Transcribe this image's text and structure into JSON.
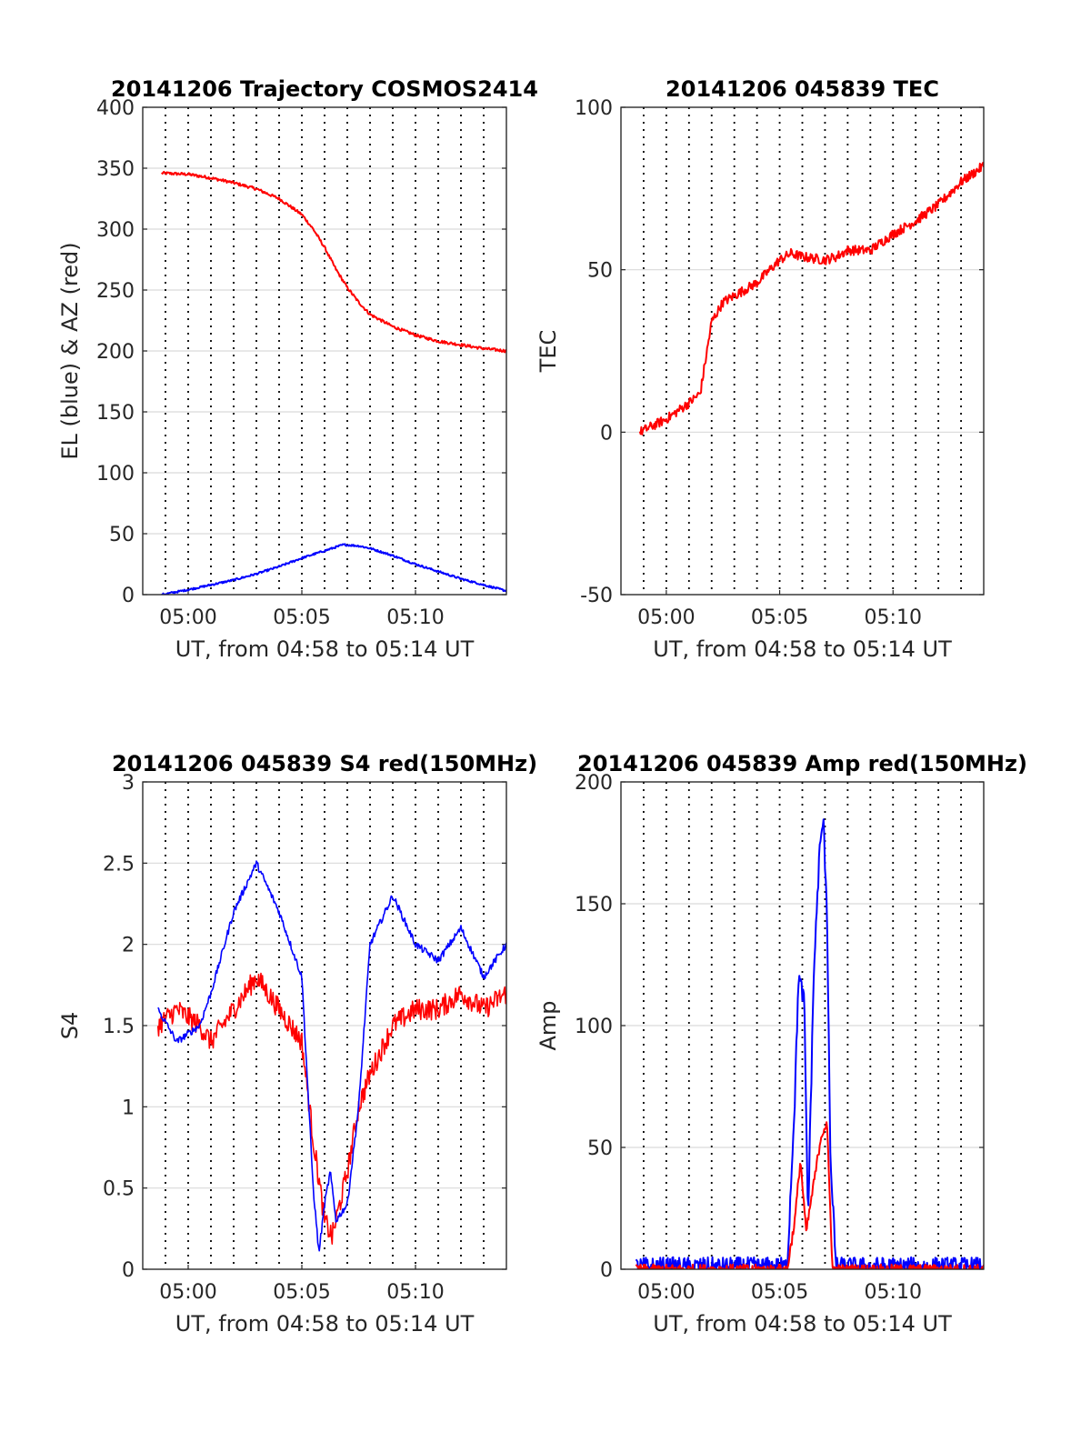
{
  "colors": {
    "el": "#0000ff",
    "az": "#ff0000",
    "tec": "#ff0000",
    "s4_red": "#ff0000",
    "s4_blue": "#0000ff",
    "amp_red": "#ff0000",
    "amp_blue": "#0000ff"
  },
  "chart_data": [
    {
      "id": "trajectory",
      "type": "line",
      "title": "20141206 Trajectory COSMOS2414",
      "xlabel": "UT, from 04:58 to 05:14 UT",
      "ylabel": "EL (blue) & AZ (red)",
      "xlim": [
        "04:58",
        "05:14"
      ],
      "ylim": [
        0,
        400
      ],
      "xticks": [
        "05:00",
        "05:05",
        "05:10"
      ],
      "yticks": [
        0,
        50,
        100,
        150,
        200,
        250,
        300,
        350,
        400
      ],
      "grid_x_minutes": [
        "04:59",
        "05:00",
        "05:01",
        "05:02",
        "05:03",
        "05:04",
        "05:05",
        "05:06",
        "05:07",
        "05:08",
        "05:09",
        "05:10",
        "05:11",
        "05:12",
        "05:13"
      ],
      "series": [
        {
          "color_key": "az",
          "noise": 0.3,
          "x": [
            "04:58:50",
            "05:00:00",
            "05:01:00",
            "05:02:00",
            "05:03:00",
            "05:04:00",
            "05:05:00",
            "05:05:30",
            "05:06:00",
            "05:06:30",
            "05:07:00",
            "05:07:30",
            "05:08:00",
            "05:09:00",
            "05:10:00",
            "05:11:00",
            "05:12:00",
            "05:13:00",
            "05:14:00"
          ],
          "y": [
            346,
            345,
            342,
            338,
            333,
            325,
            312,
            300,
            285,
            267,
            252,
            240,
            230,
            220,
            213,
            208,
            205,
            202,
            200
          ]
        },
        {
          "color_key": "el",
          "noise": 0.2,
          "x": [
            "04:58:50",
            "05:00:00",
            "05:01:00",
            "05:02:00",
            "05:03:00",
            "05:04:00",
            "05:05:00",
            "05:06:00",
            "05:06:50",
            "05:07:30",
            "05:08:00",
            "05:09:00",
            "05:10:00",
            "05:11:00",
            "05:12:00",
            "05:13:00",
            "05:14:00"
          ],
          "y": [
            0,
            4,
            8,
            12,
            17,
            23,
            30,
            36,
            41,
            40,
            38,
            32,
            25,
            19,
            13,
            8,
            3
          ]
        }
      ]
    },
    {
      "id": "tec",
      "type": "line",
      "title": "20141206 045839 TEC",
      "xlabel": "UT, from 04:58 to 05:14 UT",
      "ylabel": "TEC",
      "xlim": [
        "04:58",
        "05:14"
      ],
      "ylim": [
        -50,
        100
      ],
      "xticks": [
        "05:00",
        "05:05",
        "05:10"
      ],
      "yticks": [
        -50,
        0,
        50,
        100
      ],
      "grid_x_minutes": [
        "04:59",
        "05:00",
        "05:01",
        "05:02",
        "05:03",
        "05:04",
        "05:05",
        "05:06",
        "05:07",
        "05:08",
        "05:09",
        "05:10",
        "05:11",
        "05:12",
        "05:13"
      ],
      "series": [
        {
          "color_key": "tec",
          "noise": 1.0,
          "x": [
            "04:58:50",
            "05:00:00",
            "05:01:00",
            "05:01:30",
            "05:02:00",
            "05:02:30",
            "05:03:00",
            "05:04:00",
            "05:05:00",
            "05:05:30",
            "05:06:00",
            "05:07:00",
            "05:07:30",
            "05:08:00",
            "05:09:00",
            "05:10:00",
            "05:11:00",
            "05:12:00",
            "05:13:00",
            "05:14:00"
          ],
          "y": [
            0,
            4,
            9,
            12,
            34,
            40,
            42,
            46,
            53,
            55,
            54,
            53,
            54,
            56,
            56,
            61,
            65,
            70,
            77,
            82
          ]
        }
      ]
    },
    {
      "id": "s4",
      "type": "line",
      "title": "20141206 045839 S4 red(150MHz)",
      "xlabel": "UT, from 04:58 to 05:14 UT",
      "ylabel": "S4",
      "xlim": [
        "04:58",
        "05:14"
      ],
      "ylim": [
        0,
        3
      ],
      "xticks": [
        "05:00",
        "05:05",
        "05:10"
      ],
      "yticks": [
        0,
        0.5,
        1,
        1.5,
        2,
        2.5,
        3
      ],
      "grid_x_minutes": [
        "04:59",
        "05:00",
        "05:01",
        "05:02",
        "05:03",
        "05:04",
        "05:05",
        "05:06",
        "05:07",
        "05:08",
        "05:09",
        "05:10",
        "05:11",
        "05:12",
        "05:13"
      ],
      "series": [
        {
          "color_key": "s4_red",
          "noise": 1.4,
          "x": [
            "04:58:40",
            "04:59:30",
            "05:00:30",
            "05:01:00",
            "05:02:00",
            "05:03:00",
            "05:04:00",
            "05:05:00",
            "05:05:30",
            "05:06:00",
            "05:06:20",
            "05:06:40",
            "05:07:00",
            "05:07:30",
            "05:08:00",
            "05:09:00",
            "05:10:00",
            "05:11:00",
            "05:12:00",
            "05:13:00",
            "05:14:00"
          ],
          "y": [
            1.5,
            1.6,
            1.5,
            1.4,
            1.6,
            1.8,
            1.6,
            1.4,
            0.8,
            0.3,
            0.2,
            0.4,
            0.6,
            1.0,
            1.2,
            1.5,
            1.6,
            1.6,
            1.7,
            1.6,
            1.7
          ]
        },
        {
          "color_key": "s4_blue",
          "noise": 0.45,
          "x": [
            "04:58:40",
            "04:59:30",
            "05:00:30",
            "05:01:00",
            "05:02:00",
            "05:03:00",
            "05:04:00",
            "05:05:00",
            "05:05:30",
            "05:05:45",
            "05:06:00",
            "05:06:15",
            "05:06:30",
            "05:07:00",
            "05:07:30",
            "05:08:00",
            "05:09:00",
            "05:10:00",
            "05:11:00",
            "05:12:00",
            "05:13:00",
            "05:14:00"
          ],
          "y": [
            1.6,
            1.4,
            1.5,
            1.7,
            2.2,
            2.5,
            2.2,
            1.8,
            0.5,
            0.1,
            0.4,
            0.6,
            0.3,
            0.4,
            1.0,
            2.0,
            2.3,
            2.0,
            1.9,
            2.1,
            1.8,
            2.0
          ]
        }
      ]
    },
    {
      "id": "amp",
      "type": "line",
      "title": "20141206 045839 Amp red(150MHz)",
      "xlabel": "UT, from 04:58 to 05:14 UT",
      "ylabel": "Amp",
      "xlim": [
        "04:58",
        "05:14"
      ],
      "ylim": [
        0,
        200
      ],
      "xticks": [
        "05:00",
        "05:05",
        "05:10"
      ],
      "yticks": [
        0,
        50,
        100,
        150,
        200
      ],
      "grid_x_minutes": [
        "04:59",
        "05:00",
        "05:01",
        "05:02",
        "05:03",
        "05:04",
        "05:05",
        "05:06",
        "05:07",
        "05:08",
        "05:09",
        "05:10",
        "05:11",
        "05:12",
        "05:13"
      ],
      "series": [
        {
          "color_key": "amp_blue",
          "noise": 2.0,
          "x": [
            "04:58:40",
            "05:05:20",
            "05:05:40",
            "05:05:50",
            "05:06:05",
            "05:06:15",
            "05:06:30",
            "05:06:45",
            "05:06:55",
            "05:07:05",
            "05:07:15",
            "05:07:30",
            "05:14:00"
          ],
          "y": [
            1,
            1,
            70,
            120,
            110,
            20,
            120,
            170,
            185,
            150,
            40,
            1,
            1
          ]
        },
        {
          "color_key": "amp_red",
          "noise": 1.0,
          "x": [
            "04:58:40",
            "05:05:20",
            "05:05:40",
            "05:05:55",
            "05:06:10",
            "05:06:30",
            "05:06:50",
            "05:07:05",
            "05:07:20",
            "05:14:00"
          ],
          "y": [
            0,
            0,
            20,
            45,
            15,
            35,
            55,
            60,
            0,
            0
          ]
        }
      ]
    }
  ]
}
